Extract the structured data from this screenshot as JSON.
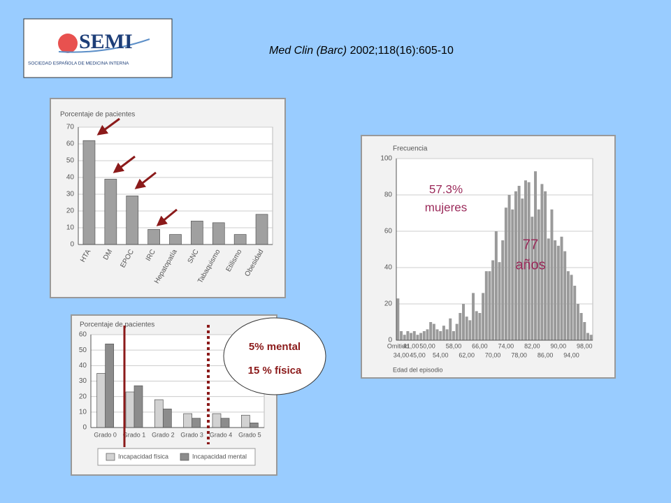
{
  "header": {
    "logo": "SEMI",
    "logo_subtitle": "SOCIEDAD ESPAÑOLA DE MEDICINA INTERNA",
    "citation": {
      "journal": "Med Clin (Barc)",
      "reference": " 2002;118(16):605-10"
    }
  },
  "chart_data": [
    {
      "type": "bar",
      "y_label": "Porcentaje de pacientes",
      "categories": [
        "HTA",
        "DM",
        "EPOC",
        "IRC",
        "Hepatopatía",
        "SNC",
        "Tabaquismo",
        "Etilismo",
        "Obesidad"
      ],
      "values": [
        62,
        39,
        29,
        9,
        6,
        14,
        13,
        6,
        18
      ],
      "color": "#a0a0a0",
      "ylim": [
        0,
        70
      ],
      "yticks": [
        0,
        10,
        20,
        30,
        40,
        50,
        60,
        70
      ],
      "grid": true
    },
    {
      "type": "bar",
      "y_label": "Porcentaje de pacientes",
      "categories": [
        "Grado 0",
        "Grado 1",
        "Grado 2",
        "Grado 3",
        "Grado 4",
        "Grado 5"
      ],
      "series": [
        {
          "name": "Incapacidad física",
          "color": "#d2d2d2",
          "values": [
            35,
            23,
            18,
            9,
            9,
            8
          ]
        },
        {
          "name": "Incapacidad mental",
          "color": "#8c8c8c",
          "values": [
            54,
            27,
            12,
            6,
            6,
            3
          ]
        }
      ],
      "ylim": [
        0,
        60
      ],
      "yticks": [
        0,
        10,
        20,
        30,
        40,
        50,
        60
      ],
      "grid": true,
      "legend": "bottom",
      "annotations": [
        "5% mental",
        "15 % física"
      ]
    },
    {
      "type": "bar",
      "y_label": "Frecuencia",
      "x_label": "Edad del episodio",
      "categories": [
        "Omitido",
        "34,00",
        null,
        null,
        "41,00",
        null,
        "45,00",
        null,
        null,
        "50,00",
        null,
        null,
        null,
        "54,00",
        null,
        null,
        null,
        "58,00",
        null,
        null,
        null,
        "62,00",
        null,
        null,
        null,
        "66,00",
        null,
        null,
        null,
        "70,00",
        null,
        null,
        null,
        "74,00",
        null,
        null,
        null,
        "78,00",
        null,
        null,
        null,
        "82,00",
        null,
        null,
        null,
        "86,00",
        null,
        null,
        null,
        "90,00",
        null,
        null,
        null,
        "94,00",
        null,
        null,
        null,
        "98,00",
        null,
        null
      ],
      "values": [
        23,
        5,
        3,
        5,
        4,
        5,
        3,
        4,
        5,
        6,
        10,
        9,
        6,
        5,
        8,
        6,
        12,
        5,
        9,
        15,
        20,
        13,
        11,
        26,
        16,
        15,
        26,
        38,
        38,
        44,
        60,
        43,
        55,
        73,
        80,
        72,
        82,
        85,
        78,
        88,
        87,
        68,
        93,
        72,
        86,
        82,
        56,
        72,
        55,
        52,
        57,
        49,
        38,
        36,
        30,
        20,
        15,
        10,
        4,
        3
      ],
      "color": "#9a9a9a",
      "ylim": [
        0,
        100
      ],
      "yticks": [
        0,
        20,
        40,
        60,
        80,
        100
      ],
      "grid": true,
      "annotations": [
        "57.3%",
        "mujeres",
        "77",
        "años"
      ]
    }
  ]
}
